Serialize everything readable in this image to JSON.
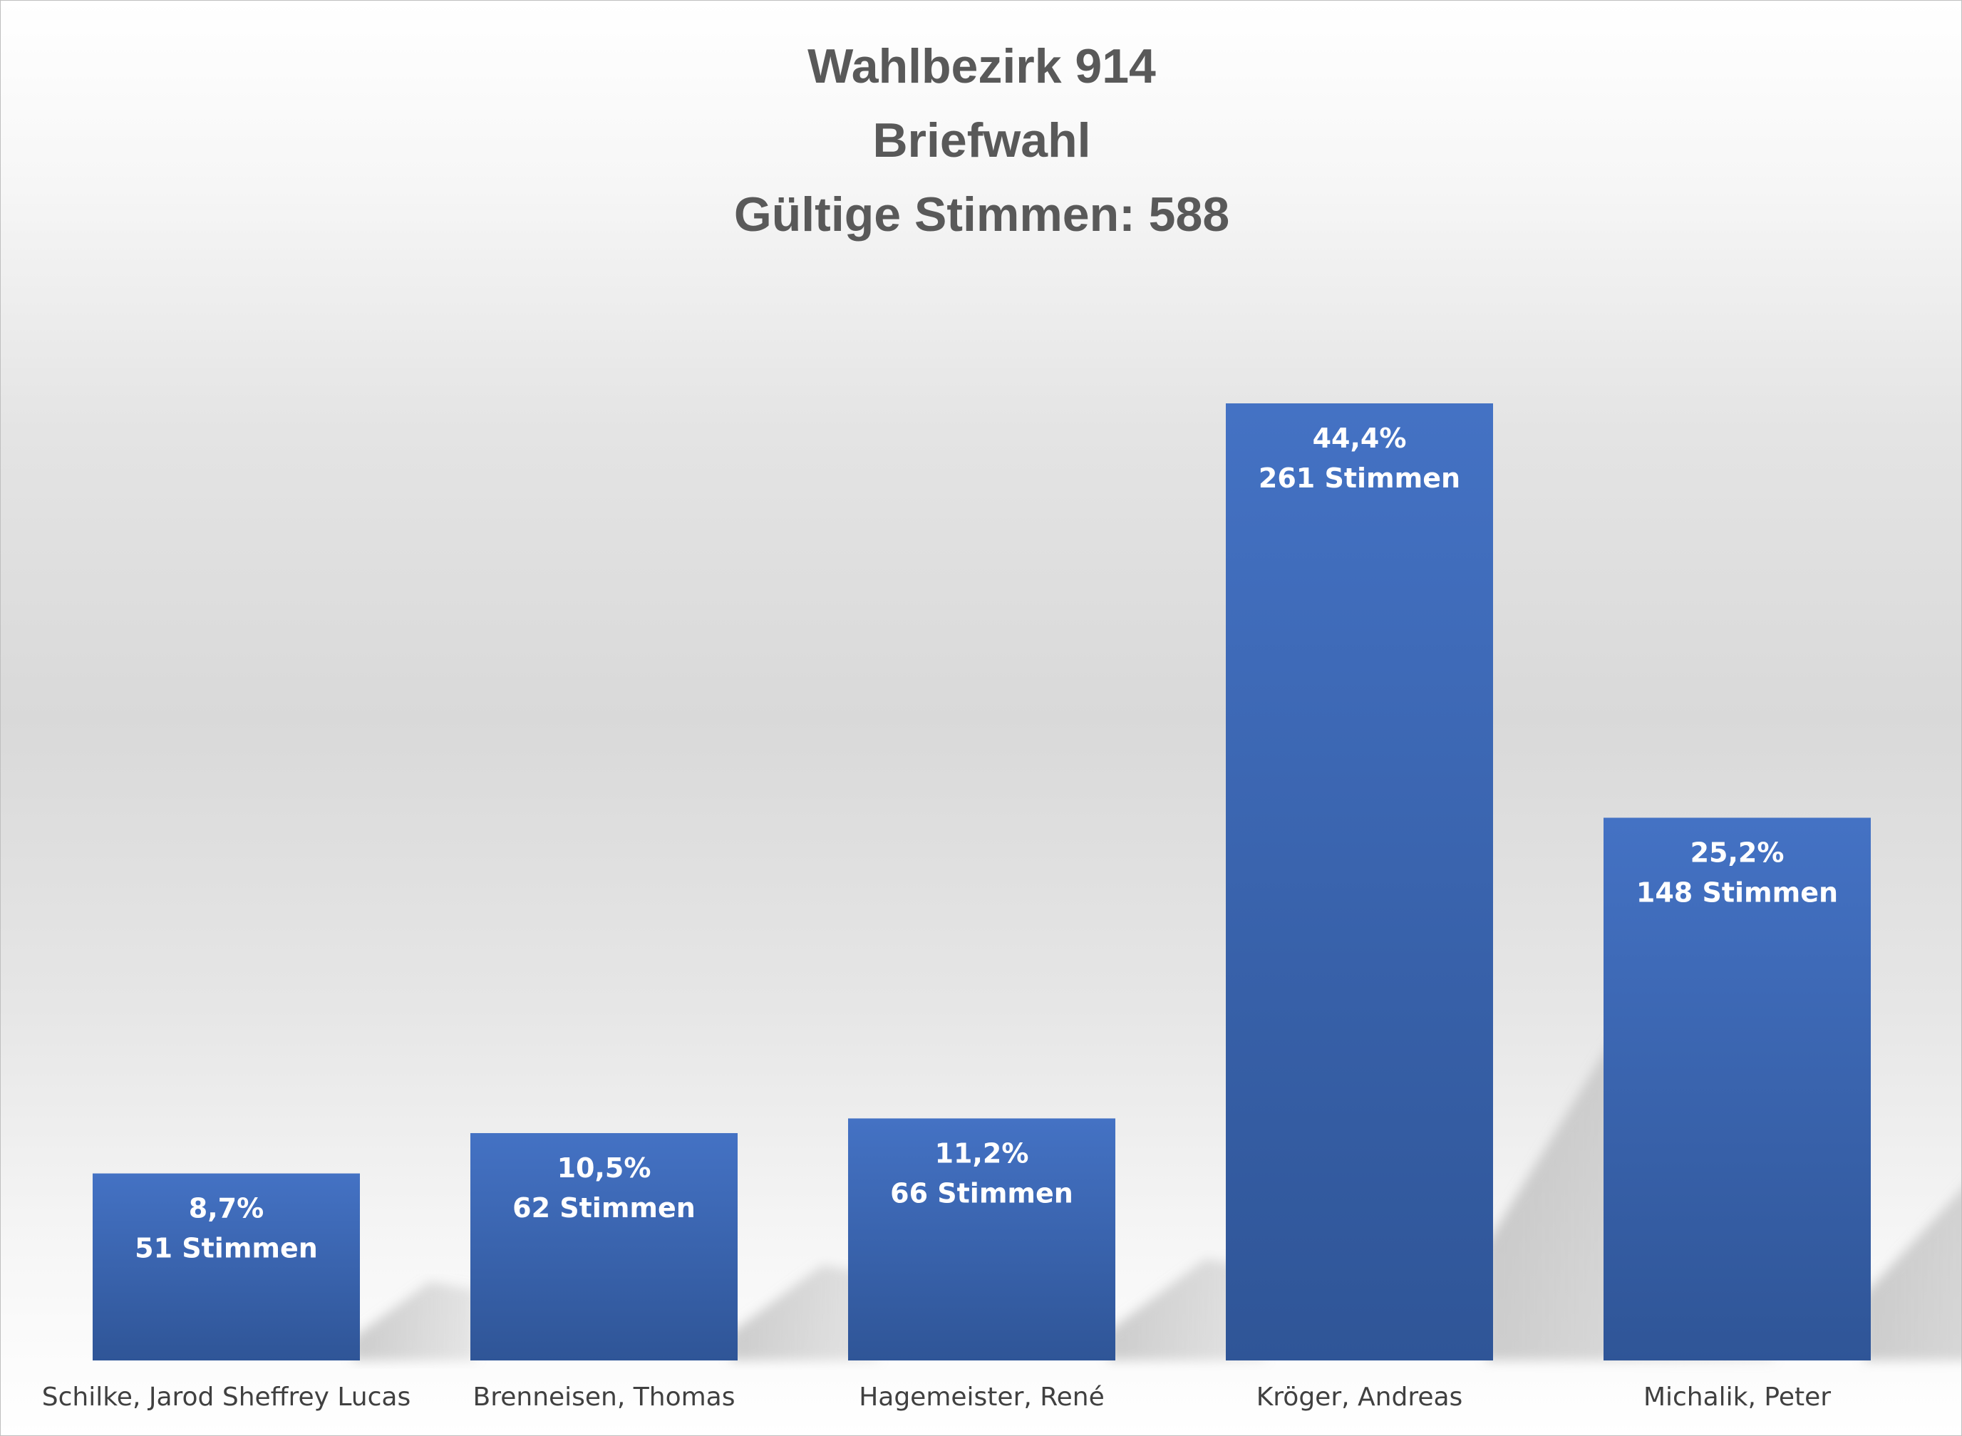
{
  "title_lines": [
    "Wahlbezirk 914",
    "Briefwahl",
    "Gültige Stimmen: 588"
  ],
  "colors": {
    "bar_top": "#4472c4",
    "bar_bottom": "#2f5597",
    "text": "#595959",
    "label_text": "#ffffff"
  },
  "chart_data": {
    "type": "bar",
    "title": "Wahlbezirk 914 / Briefwahl / Gültige Stimmen: 588",
    "categories": [
      "Schilke, Jarod Sheffrey Lucas",
      "Brenneisen, Thomas",
      "Hagemeister, René",
      "Kröger, Andreas",
      "Michalik, Peter"
    ],
    "values": [
      51,
      62,
      66,
      261,
      148
    ],
    "percent_labels": [
      "8,7%",
      "10,5%",
      "11,2%",
      "44,4%",
      "25,2%"
    ],
    "vote_labels": [
      "51 Stimmen",
      "62 Stimmen",
      "66 Stimmen",
      "261 Stimmen",
      "148 Stimmen"
    ],
    "ylim": [
      0,
      261
    ],
    "grid": false,
    "legend": "none"
  }
}
